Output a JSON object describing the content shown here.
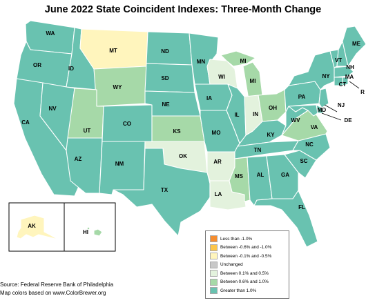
{
  "title": "June 2022 State Coincident Indexes: Three-Month Change",
  "colors": {
    "lt_neg1": "#f58d2f",
    "neg06_neg1": "#fcc54a",
    "neg01_neg05": "#fff5bd",
    "unchanged": "#c8c8c8",
    "p01_05": "#e3f2dd",
    "p06_10": "#a6d9a8",
    "gt_10": "#69c2b0"
  },
  "states": {
    "WA": "gt_10",
    "OR": "gt_10",
    "CA": "gt_10",
    "NV": "gt_10",
    "ID": "gt_10",
    "MT": "neg01_neg05",
    "WY": "p06_10",
    "UT": "p06_10",
    "AZ": "gt_10",
    "CO": "gt_10",
    "NM": "gt_10",
    "ND": "gt_10",
    "SD": "gt_10",
    "NE": "gt_10",
    "KS": "p06_10",
    "OK": "p01_05",
    "TX": "gt_10",
    "MN": "gt_10",
    "IA": "gt_10",
    "MO": "gt_10",
    "AR": "p01_05",
    "LA": "p01_05",
    "WI": "p01_05",
    "IL": "gt_10",
    "MS": "p06_10",
    "MI": "p06_10",
    "IN": "p01_05",
    "KY": "gt_10",
    "TN": "gt_10",
    "AL": "gt_10",
    "OH": "p06_10",
    "GA": "gt_10",
    "FL": "gt_10",
    "SC": "gt_10",
    "NC": "gt_10",
    "VA": "p06_10",
    "WV": "gt_10",
    "PA": "gt_10",
    "NY": "gt_10",
    "VT": "gt_10",
    "NH": "gt_10",
    "ME": "gt_10",
    "MA": "gt_10",
    "CT": "gt_10",
    "RI": "gt_10",
    "NJ": "gt_10",
    "DE": "gt_10",
    "MD": "gt_10",
    "AK": "neg01_neg05",
    "HI": "p06_10"
  },
  "state_labels": {
    "WA": "WA",
    "OR": "OR",
    "CA": "CA",
    "NV": "NV",
    "ID": "ID",
    "MT": "MT",
    "WY": "WY",
    "UT": "UT",
    "AZ": "AZ",
    "CO": "CO",
    "NM": "NM",
    "ND": "ND",
    "SD": "SD",
    "NE": "NE",
    "KS": "KS",
    "OK": "OK",
    "TX": "TX",
    "MN": "MN",
    "IA": "IA",
    "MO": "MO",
    "AR": "AR",
    "LA": "LA",
    "WI": "WI",
    "IL": "IL",
    "MS": "MS",
    "MI": "MI",
    "MI_upper": "MI",
    "IN": "IN",
    "KY": "KY",
    "TN": "TN",
    "AL": "AL",
    "OH": "OH",
    "GA": "GA",
    "FL": "FL",
    "SC": "SC",
    "NC": "NC",
    "VA": "VA",
    "WV": "WV",
    "PA": "PA",
    "NY": "NY",
    "VT": "VT",
    "NH": "NH",
    "ME": "ME",
    "MA": "MA",
    "CT": "CT",
    "RI": "R",
    "NJ": "NJ",
    "DE": "DE",
    "MD": "MD",
    "AK": "AK",
    "HI": "HI"
  },
  "legend": [
    {
      "key": "lt_neg1",
      "label": "Less than -1.0%"
    },
    {
      "key": "neg06_neg1",
      "label": "Between -0.6% and -1.0%"
    },
    {
      "key": "neg01_neg05",
      "label": "Between -0.1% and -0.5%"
    },
    {
      "key": "unchanged",
      "label": "Unchanged"
    },
    {
      "key": "p01_05",
      "label": "Between 0.1% and 0.5%"
    },
    {
      "key": "p06_10",
      "label": "Between 0.6% and 1.0%"
    },
    {
      "key": "gt_10",
      "label": "Greater than 1.0%"
    }
  ],
  "source_lines": {
    "source": "Source: Federal Reserve Bank of Philadelphia",
    "colors": "Map colors based on www.ColorBrewer.org"
  }
}
